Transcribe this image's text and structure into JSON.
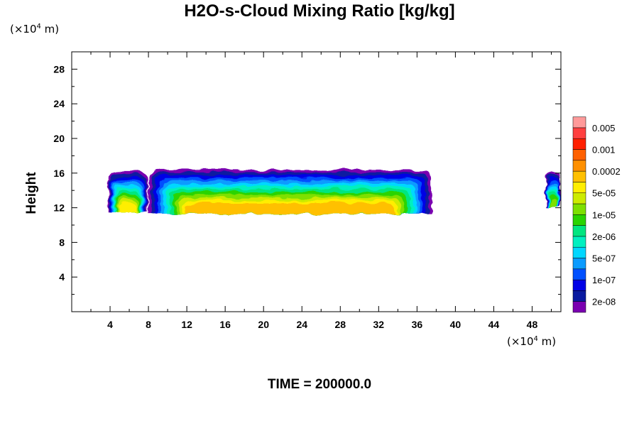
{
  "chart_data": {
    "type": "heatmap",
    "title": "H2O-s-Cloud Mixing Ratio [kg/kg]",
    "ylabel": "Height",
    "x_unit": {
      "prefix": "(×10",
      "exp": "4",
      "suffix": " m)"
    },
    "y_unit": {
      "prefix": "(×10",
      "exp": "4",
      "suffix": " m)"
    },
    "xlim": [
      0,
      51
    ],
    "ylim": [
      0,
      30
    ],
    "x_ticks": [
      4,
      8,
      12,
      16,
      20,
      24,
      28,
      32,
      36,
      40,
      44,
      48
    ],
    "y_ticks": [
      4,
      8,
      12,
      16,
      20,
      24,
      28
    ],
    "colorbar": {
      "colors": [
        "#7a00b0",
        "#0a1aa0",
        "#0000e6",
        "#0050ff",
        "#0a9bff",
        "#00d7ff",
        "#00f0c0",
        "#00e680",
        "#2ad400",
        "#7ee000",
        "#cdeb00",
        "#ffee00",
        "#ffc000",
        "#ff9000",
        "#ff6000",
        "#ff2000",
        "#ff4040",
        "#ff9a9a"
      ],
      "labels": [
        "2e-08",
        "1e-07",
        "5e-07",
        "2e-06",
        "1e-05",
        "5e-05",
        "0.0002",
        "0.001",
        "0.005"
      ]
    },
    "clouds": [
      {
        "x": [
          3.8,
          7.9
        ],
        "base": 11.5,
        "top": 16.2,
        "max_level": 11
      },
      {
        "x": [
          8.0,
          37.5
        ],
        "base": 11.3,
        "top": 16.4,
        "max_level": 12
      },
      {
        "x": [
          49.4,
          51.0
        ],
        "base": 12.0,
        "top": 16.2,
        "max_level": 9
      }
    ]
  },
  "footer": {
    "time_label": "TIME = 200000.0"
  }
}
